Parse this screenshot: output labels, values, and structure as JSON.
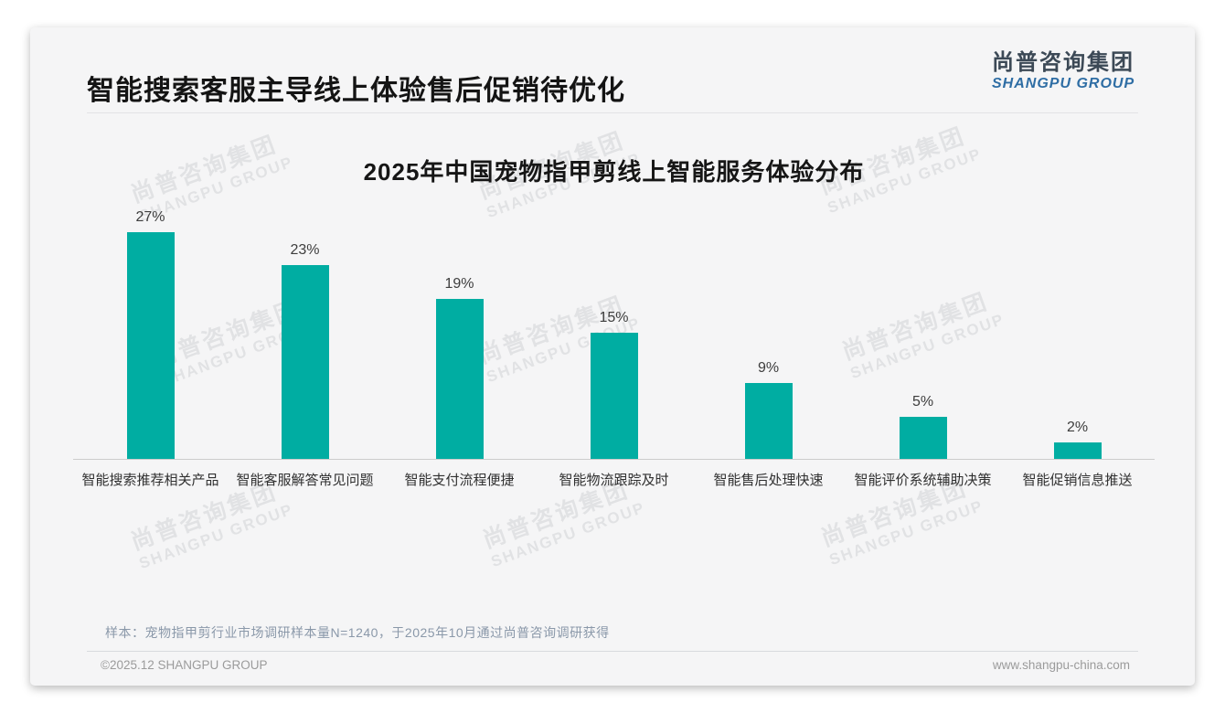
{
  "header": {
    "title": "智能搜索客服主导线上体验售后促销待优化",
    "logo": {
      "chinese": "尚普咨询集团",
      "english": "SHANGPU GROUP"
    }
  },
  "chart_data": {
    "type": "bar",
    "title": "2025年中国宠物指甲剪线上智能服务体验分布",
    "categories": [
      "智能搜索推荐相关产品",
      "智能客服解答常见问题",
      "智能支付流程便捷",
      "智能物流跟踪及时",
      "智能售后处理快速",
      "智能评价系统辅助决策",
      "智能促销信息推送"
    ],
    "values": [
      27,
      23,
      19,
      15,
      9,
      5,
      2
    ],
    "value_suffix": "%",
    "xlabel": "",
    "ylabel": "",
    "ylim": [
      0,
      30
    ],
    "grid": false,
    "legend": false,
    "bar_color": "#00ADA2",
    "axis_color": "#cccccc"
  },
  "watermark": {
    "line1": "尚普咨询集团",
    "line2": "SHANGPU GROUP"
  },
  "footnote": "样本：宠物指甲剪行业市场调研样本量N=1240，于2025年10月通过尚普咨询调研获得",
  "footer": {
    "copyright": "©2025.12 SHANGPU GROUP",
    "website": "www.shangpu-china.com"
  },
  "colors": {
    "bar": "#00ADA2",
    "logo_blue": "#2e6da4",
    "logo_dark": "#3c4956",
    "title_text": "#141414",
    "note_text": "#8a98a9",
    "footer_text": "#9b9b9b",
    "card_background": "#f5f5f6"
  }
}
